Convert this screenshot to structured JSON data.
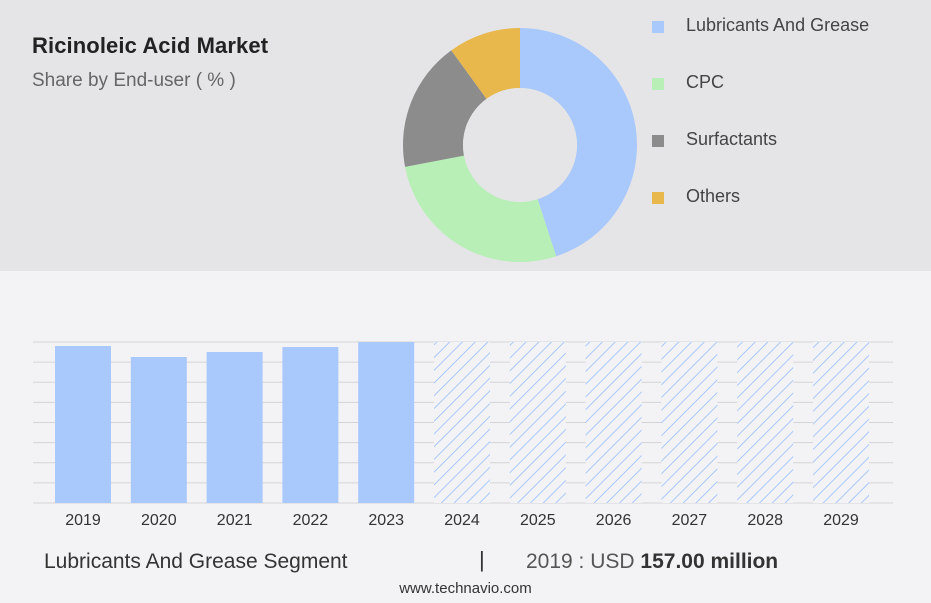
{
  "title": "Ricinoleic Acid Market",
  "subtitle": "Share by End-user ( % )",
  "footer": {
    "segment_label": "Lubricants And Grease Segment",
    "divider": "|",
    "year_value_prefix": "2019 : USD",
    "value": "157.00 million",
    "url": "www.technavio.com"
  },
  "colors": {
    "lubricants": "#a9c8fb",
    "cpc": "#b7efb6",
    "surfactants": "#8c8c8c",
    "others": "#e8b84d",
    "bar": "#a9c8fb",
    "forecast_hatch": "#a9c8fb"
  },
  "chart_data": [
    {
      "type": "pie",
      "variant": "donut",
      "title": "Share by End-user ( % )",
      "series": [
        {
          "name": "Lubricants And Grease",
          "value": 45,
          "color": "#a9c8fb"
        },
        {
          "name": "CPC",
          "value": 27,
          "color": "#b7efb6"
        },
        {
          "name": "Surfactants",
          "value": 18,
          "color": "#8c8c8c"
        },
        {
          "name": "Others",
          "value": 10,
          "color": "#e8b84d"
        }
      ],
      "legend_position": "right"
    },
    {
      "type": "bar",
      "categories": [
        "2019",
        "2020",
        "2021",
        "2022",
        "2023",
        "2024",
        "2025",
        "2026",
        "2027",
        "2028",
        "2029"
      ],
      "values": [
        157.0,
        146.0,
        151.0,
        156.0,
        161.0,
        null,
        null,
        null,
        null,
        null,
        null
      ],
      "forecast_categories": [
        "2024",
        "2025",
        "2026",
        "2027",
        "2028",
        "2029"
      ],
      "ylim": [
        0,
        161.0
      ],
      "grid": true,
      "xlabel": "",
      "ylabel": ""
    }
  ]
}
